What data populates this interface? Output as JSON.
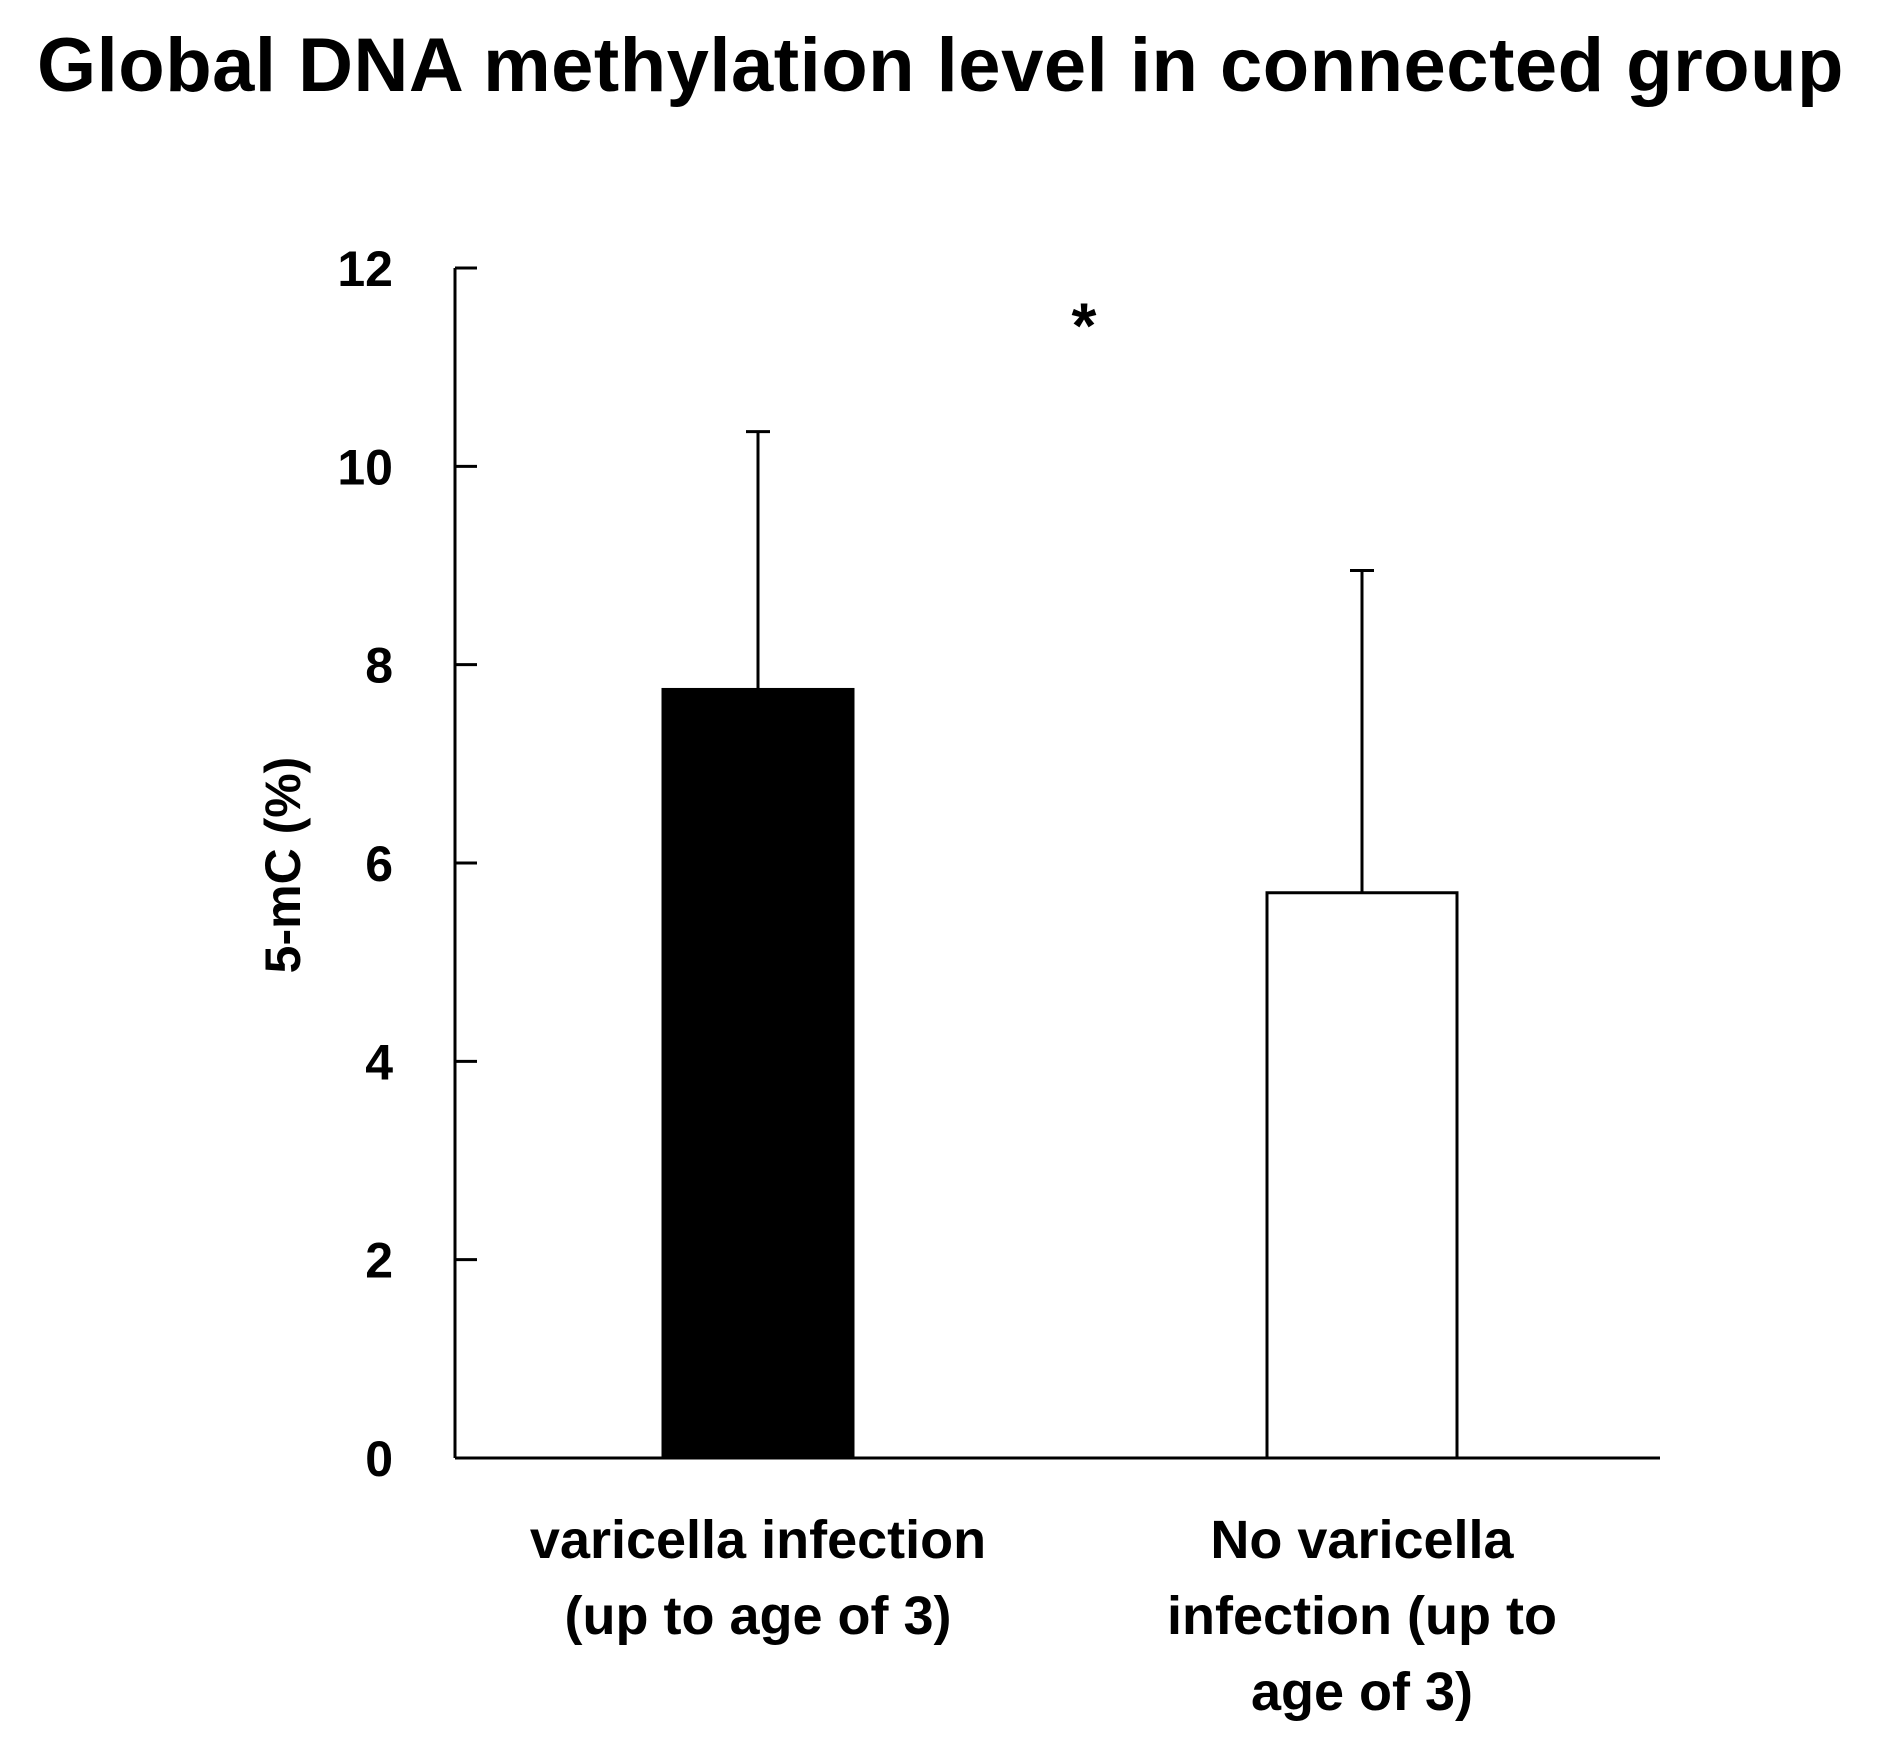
{
  "chart_data": {
    "type": "bar",
    "title": "Global DNA methylation level in connected group",
    "ylabel": "5-mC (%)",
    "xlabel": "",
    "ylim": [
      0,
      12
    ],
    "yticks": [
      0,
      2,
      4,
      6,
      8,
      10,
      12
    ],
    "categories": [
      [
        "varicella infection",
        "(up to age of 3)"
      ],
      [
        "No varicella",
        "infection (up to",
        "age of 3)"
      ]
    ],
    "values": [
      7.75,
      5.7
    ],
    "error_upper": [
      10.35,
      8.95
    ],
    "bar_colors": [
      "#000000",
      "#ffffff"
    ],
    "bar_edge_color": "#000000",
    "annotations": [
      {
        "text": "*",
        "x_between": [
          0,
          1
        ],
        "y": 11.5
      }
    ],
    "grid": false,
    "legend": "none"
  }
}
